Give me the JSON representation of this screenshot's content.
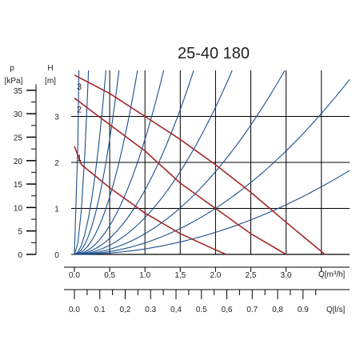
{
  "chart_data": {
    "type": "line",
    "title": "25-40 180",
    "left_axis_pressure": {
      "label": "p",
      "unit": "[kPa]",
      "ticks": [
        "35",
        "30",
        "25",
        "20",
        "15",
        "10",
        "5",
        "0"
      ],
      "tick_values": [
        35,
        30,
        25,
        20,
        15,
        10,
        5,
        0
      ]
    },
    "left_axis_head": {
      "label": "H",
      "unit": "[m]",
      "ticks": [
        "3",
        "2",
        "1",
        "0"
      ],
      "tick_values": [
        3,
        2,
        1,
        0
      ],
      "range": [
        0,
        4
      ]
    },
    "x_axis_flow_m3h": {
      "label": "Q[m³/h]",
      "ticks": [
        "0.0",
        "0,5",
        "1.0",
        "1,5",
        "2.0",
        "2,5",
        "3.0"
      ],
      "tick_values": [
        0,
        0.5,
        1,
        1.5,
        2,
        2.5,
        3
      ],
      "range": [
        0,
        3.9
      ]
    },
    "x_axis_flow_ls": {
      "label": "Q[l/s]",
      "ticks": [
        "0.0",
        "0.1",
        "0,2",
        "0.3",
        "0,4",
        "0.5",
        "0,6",
        "0.7",
        "0,8",
        "0.9"
      ],
      "tick_values": [
        0,
        0.1,
        0.2,
        0.3,
        0.4,
        0.5,
        0.6,
        0.7,
        0.8,
        0.9
      ]
    },
    "grid": true,
    "pump_curves": [
      {
        "name": "1",
        "x": [
          0,
          0.1,
          0.5,
          1.0,
          1.5,
          2.0,
          2.15
        ],
        "y": [
          2.35,
          1.95,
          1.45,
          0.9,
          0.45,
          0.1,
          0.0
        ]
      },
      {
        "name": "2",
        "x": [
          0,
          0.3,
          1.0,
          1.5,
          2.0,
          2.5,
          3.0
        ],
        "y": [
          3.4,
          3.05,
          2.25,
          1.55,
          1.0,
          0.45,
          0.0
        ]
      },
      {
        "name": "3",
        "x": [
          0,
          0.5,
          1.0,
          1.5,
          2.0,
          2.5,
          3.0,
          3.55
        ],
        "y": [
          3.9,
          3.5,
          3.0,
          2.5,
          1.95,
          1.35,
          0.7,
          0.0
        ]
      }
    ],
    "system_curve_coefficients": [
      1000,
      100,
      20,
      10,
      5,
      2.5,
      1.4,
      0.8,
      0.45,
      0.25,
      0.12
    ],
    "colors": {
      "pump": "#a3282b",
      "system": "#1a4f8c",
      "grid": "#000000"
    }
  }
}
